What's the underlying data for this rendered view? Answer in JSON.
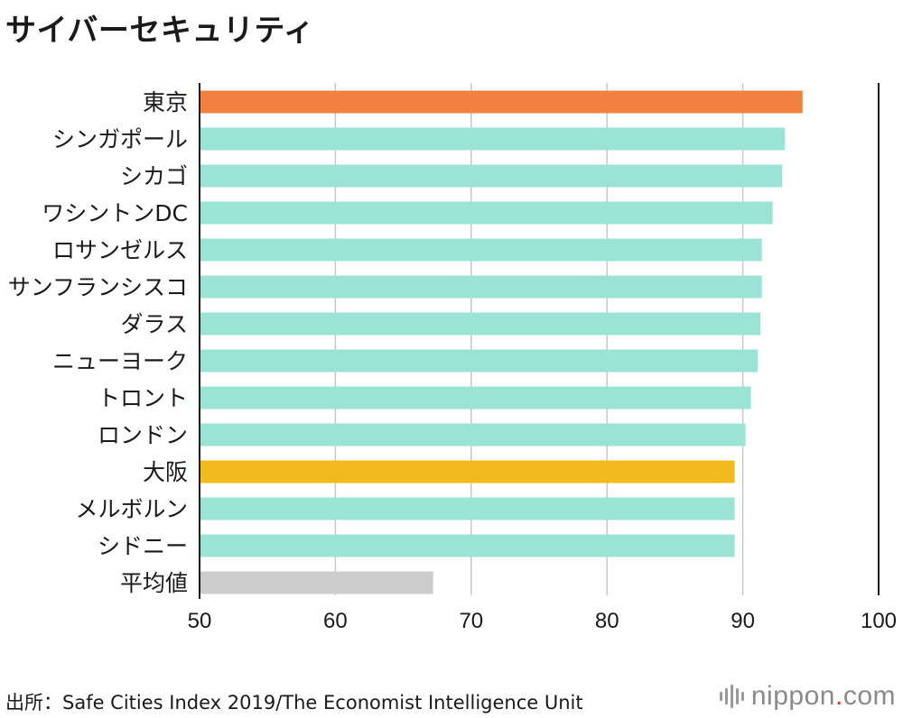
{
  "title": "サイバーセキュリティ",
  "source": "出所：Safe Cities Index 2019/The Economist Intelligence Unit",
  "logo": {
    "name": "nippon",
    "dot": ".",
    "tld": "com"
  },
  "chart_data": {
    "type": "bar",
    "orientation": "horizontal",
    "categories": [
      "東京",
      "シンガポール",
      "シカゴ",
      "ワシントンDC",
      "ロサンゼルス",
      "サンフランシスコ",
      "ダラス",
      "ニューヨーク",
      "トロント",
      "ロンドン",
      "大阪",
      "メルボルン",
      "シドニー",
      "平均値"
    ],
    "values": [
      94.4,
      93.1,
      92.9,
      92.2,
      91.4,
      91.4,
      91.3,
      91.1,
      90.6,
      90.2,
      89.4,
      89.4,
      89.4,
      67.2
    ],
    "colors": [
      "#f08140",
      "#9be3d4",
      "#9be3d4",
      "#9be3d4",
      "#9be3d4",
      "#9be3d4",
      "#9be3d4",
      "#9be3d4",
      "#9be3d4",
      "#9be3d4",
      "#f2bb1d",
      "#9be3d4",
      "#9be3d4",
      "#cccccc"
    ],
    "xlim": [
      50,
      100
    ],
    "xticks": [
      "50",
      "60",
      "70",
      "80",
      "90",
      "100"
    ],
    "grid": true,
    "colors_key": {
      "tokyo": "#f08140",
      "osaka": "#f2bb1d",
      "average": "#cccccc",
      "default": "#9be3d4"
    }
  }
}
